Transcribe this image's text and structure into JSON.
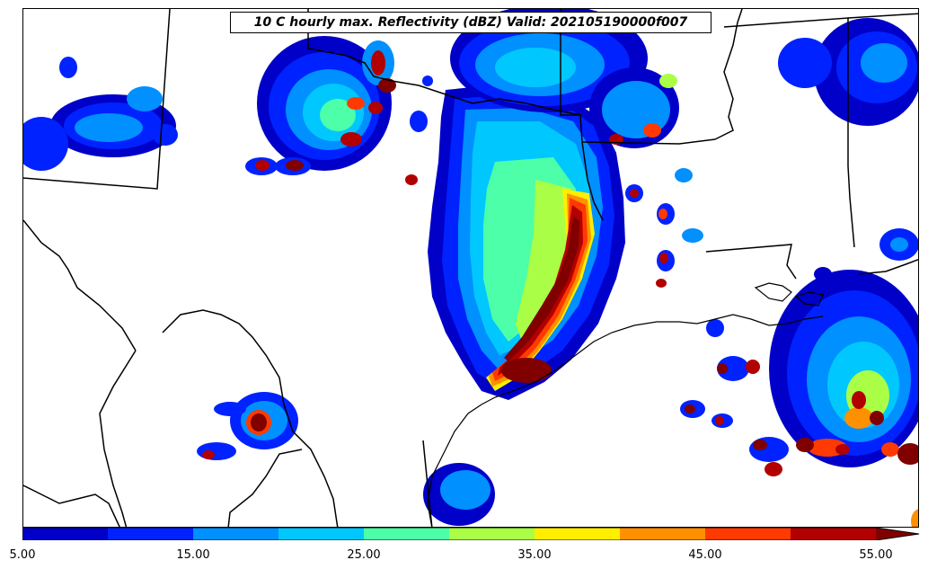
{
  "title": "10 C hourly max. Reflectivity (dBZ) Valid: 202105190000f007",
  "colorbar": {
    "min": 5,
    "max": 55,
    "extend": "max",
    "levels": [
      5,
      10,
      15,
      20,
      25,
      30,
      35,
      40,
      45,
      50,
      55
    ],
    "colors": [
      "#0000c8",
      "#0022ff",
      "#0090ff",
      "#00c8ff",
      "#4cffa8",
      "#aaff46",
      "#ffee00",
      "#ff9000",
      "#ff3a00",
      "#b20000"
    ],
    "extend_color": "#800000",
    "tick_labels": [
      "5.00",
      "15.00",
      "25.00",
      "35.00",
      "45.00",
      "55.00"
    ]
  }
}
